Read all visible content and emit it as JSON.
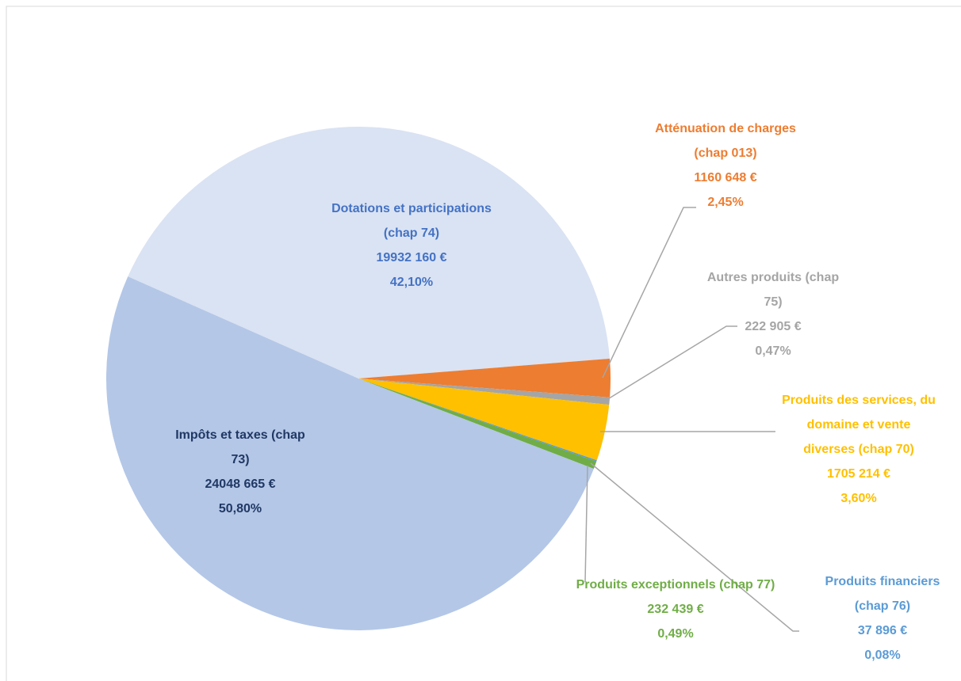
{
  "chart_data": {
    "type": "pie",
    "categories": [
      "Dotations et participations (chap 74)",
      "Atténuation de charges (chap 013)",
      "Autres produits (chap 75)",
      "Produits des services, du domaine et vente diverses (chap 70)",
      "Produits financiers (chap 76)",
      "Produits exceptionnels (chap 77)",
      "Impôts et taxes (chap 73)"
    ],
    "values": [
      42.1,
      2.45,
      0.47,
      3.6,
      0.08,
      0.49,
      50.8
    ],
    "value_labels": [
      "42,10%",
      "2,45%",
      "0,47%",
      "3,60%",
      "0,08%",
      "0,49%",
      "50,80%"
    ],
    "amounts": [
      19932160,
      1160648,
      222905,
      1705214,
      37896,
      232439,
      24048665
    ],
    "amount_labels": [
      "19932 160 €",
      "1160 648 €",
      "222 905 €",
      "1705 214 €",
      "37 896 €",
      "232 439 €",
      "24048 665 €"
    ],
    "colors": [
      "#dae3f3",
      "#ed7d31",
      "#a5a5a5",
      "#ffc000",
      "#5b9bd5",
      "#70ad47",
      "#b4c7e7"
    ],
    "label_colors": [
      "#4472c4",
      "#ed7d31",
      "#a5a5a5",
      "#ffc000",
      "#5b9bd5",
      "#70ad47",
      "#203864"
    ]
  }
}
